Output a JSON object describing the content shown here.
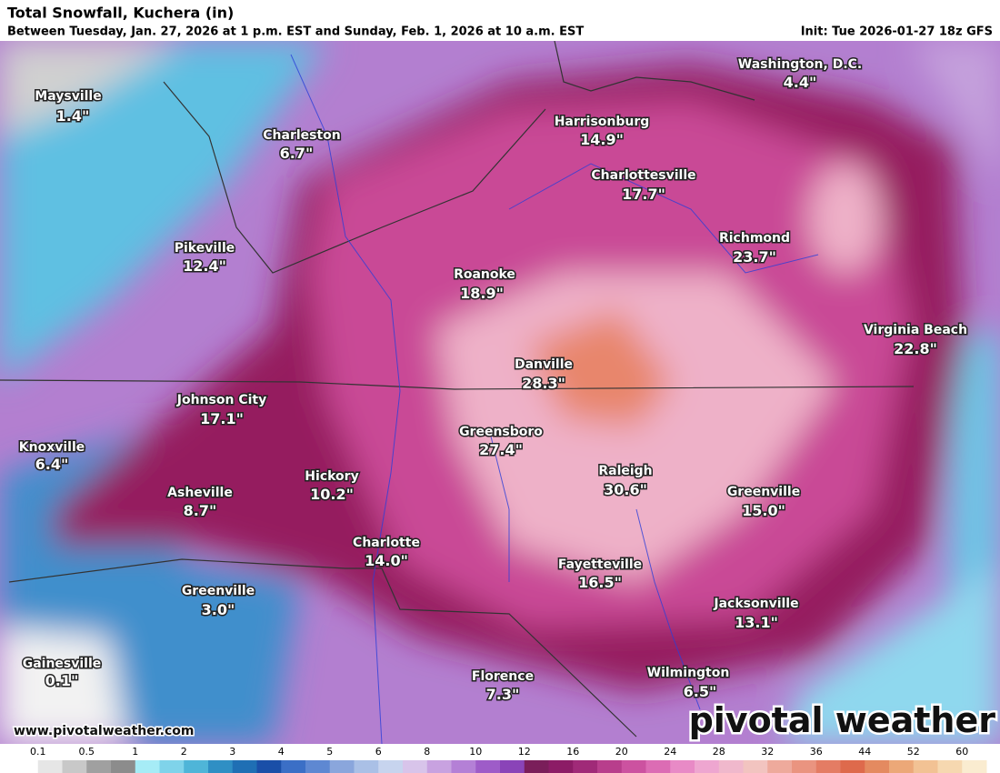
{
  "header": {
    "title": "Total Snowfall, Kuchera (in)",
    "subtitle": "Between Tuesday, Jan. 27, 2026 at 1 p.m. EST and Sunday, Feb. 1, 2026 at 10 a.m. EST",
    "init": "Init: Tue 2026-01-27 18z GFS"
  },
  "cities": [
    {
      "name": "Maysville",
      "value": "1.4\""
    },
    {
      "name": "Charleston",
      "value": "6.7\""
    },
    {
      "name": "Harrisonburg",
      "value": "14.9\""
    },
    {
      "name": "Washington, D.C.",
      "value": "4.4\""
    },
    {
      "name": "Charlottesville",
      "value": "17.7\""
    },
    {
      "name": "Pikeville",
      "value": "12.4\""
    },
    {
      "name": "Richmond",
      "value": "23.7\""
    },
    {
      "name": "Roanoke",
      "value": "18.9\""
    },
    {
      "name": "Virginia Beach",
      "value": "22.8\""
    },
    {
      "name": "Danville",
      "value": "28.3\""
    },
    {
      "name": "Johnson City",
      "value": "17.1\""
    },
    {
      "name": "Greensboro",
      "value": "27.4\""
    },
    {
      "name": "Knoxville",
      "value": "6.4\""
    },
    {
      "name": "Raleigh",
      "value": "30.6\""
    },
    {
      "name": "Hickory",
      "value": "10.2\""
    },
    {
      "name": "Greenville",
      "value": "15.0\""
    },
    {
      "name": "Asheville",
      "value": "8.7\""
    },
    {
      "name": "Charlotte",
      "value": "14.0\""
    },
    {
      "name": "Fayetteville",
      "value": "16.5\""
    },
    {
      "name": "Greenville",
      "value": "3.0\""
    },
    {
      "name": "Jacksonville",
      "value": "13.1\""
    },
    {
      "name": "Gainesville",
      "value": "0.1\""
    },
    {
      "name": "Florence",
      "value": "7.3\""
    },
    {
      "name": "Wilmington",
      "value": "6.5\""
    }
  ],
  "footer": {
    "website": "www.pivotalweather.com",
    "logo": "pivotal weather"
  },
  "legend": {
    "ticks": [
      "0.1",
      "0.5",
      "1",
      "2",
      "3",
      "4",
      "5",
      "6",
      "8",
      "10",
      "12",
      "16",
      "20",
      "24",
      "28",
      "32",
      "36",
      "44",
      "52",
      "60"
    ],
    "colors": [
      "#ffffff",
      "#e6e6e6",
      "#c8c8c8",
      "#a0a0a0",
      "#8c8c8c",
      "#a6ecf6",
      "#7fd3ea",
      "#4fb5d8",
      "#2f8fc4",
      "#1f6fb4",
      "#1a4fa8",
      "#3b6fc6",
      "#5e88d2",
      "#8aa6dc",
      "#aac0e6",
      "#c7d4ee",
      "#d8c4ea",
      "#c8a2e0",
      "#b480d6",
      "#9e5cc8",
      "#8a44b8",
      "#7a1e5a",
      "#8c1c66",
      "#a02a78",
      "#b83e8c",
      "#cc52a0",
      "#dc6cb4",
      "#e88ac6",
      "#eea6d0",
      "#f0b8cc",
      "#f2c4c0",
      "#eeaa9c",
      "#ea9480",
      "#e47c64",
      "#de6a4c",
      "#e48a60",
      "#eca878",
      "#f2c294",
      "#f6d8b0",
      "#faecd0"
    ]
  }
}
